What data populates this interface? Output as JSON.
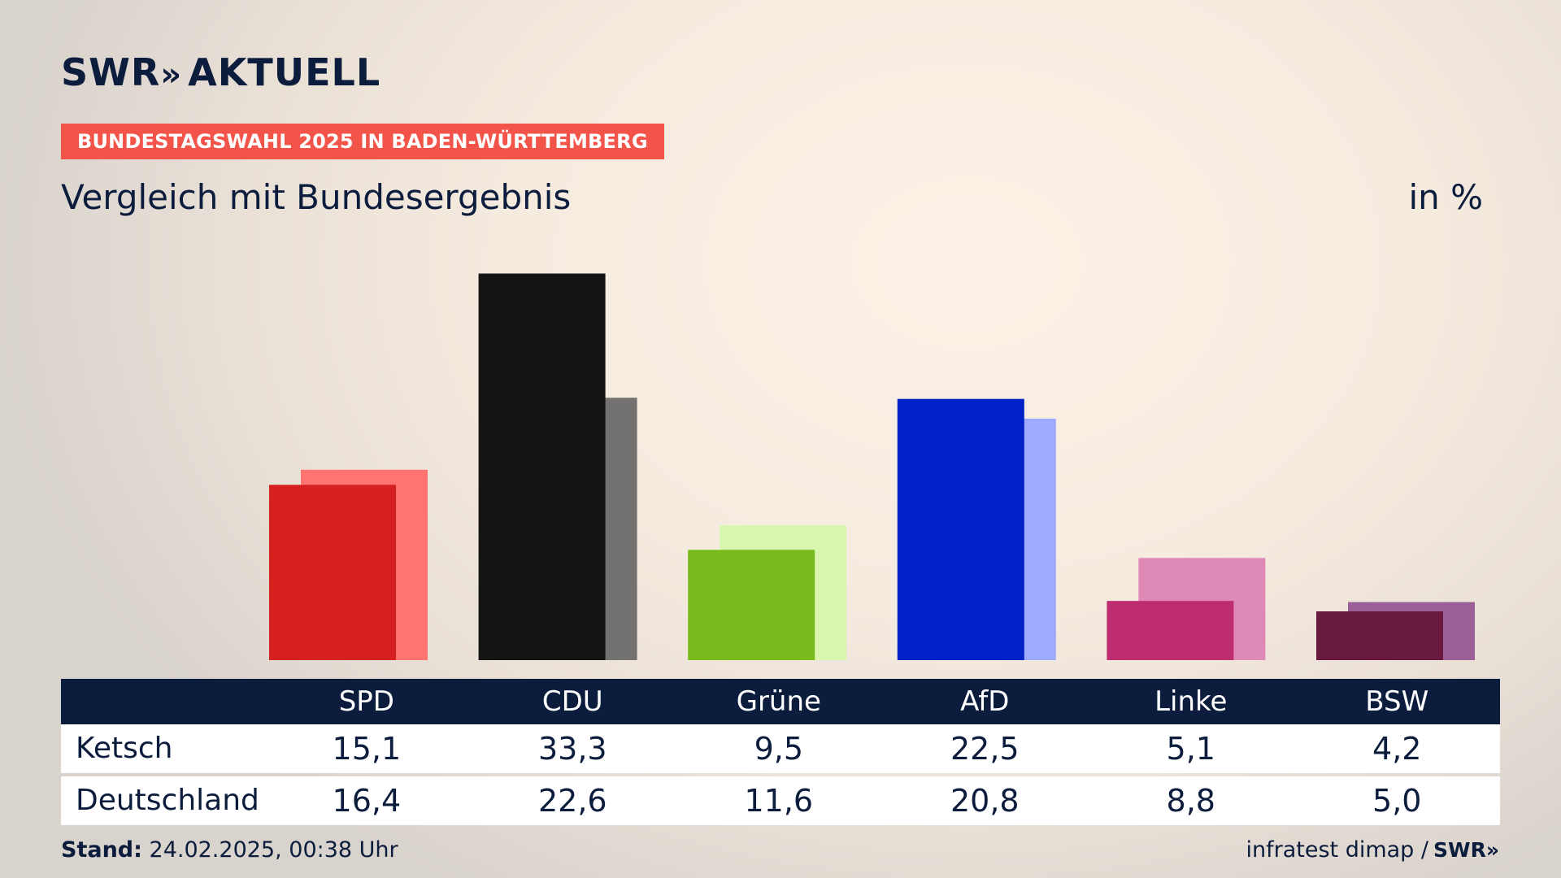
{
  "brand": {
    "logo_text": "SWR",
    "logo_arrows": "»",
    "logo_suffix": "AKTUELL"
  },
  "kicker": "BUNDESTAGSWAHL 2025 IN BADEN-WÜRTTEMBERG",
  "title": "Vergleich mit Bundesergebnis",
  "unit": "in %",
  "chart_data": {
    "type": "bar",
    "categories": [
      "SPD",
      "CDU",
      "Grüne",
      "AfD",
      "Linke",
      "BSW"
    ],
    "series": [
      {
        "name": "Ketsch",
        "values": [
          15.1,
          33.3,
          9.5,
          22.5,
          5.1,
          4.2
        ]
      },
      {
        "name": "Deutschland",
        "values": [
          16.4,
          22.6,
          11.6,
          20.8,
          8.8,
          5.0
        ]
      }
    ],
    "colors": {
      "Ketsch": [
        "#d6201f",
        "#141414",
        "#79bb1c",
        "#0021c8",
        "#bd2d6f",
        "#6b1a3f"
      ],
      "Deutschland": [
        "#ff7470",
        "#737270",
        "#d8f6ae",
        "#9eaaff",
        "#de89b6",
        "#9c6098"
      ]
    }
  },
  "table": {
    "headers": [
      "",
      "SPD",
      "CDU",
      "Grüne",
      "AfD",
      "Linke",
      "BSW"
    ],
    "rows": [
      {
        "label": "Ketsch",
        "values": [
          "15,1",
          "33,3",
          "9,5",
          "22,5",
          "5,1",
          "4,2"
        ]
      },
      {
        "label": "Deutschland",
        "values": [
          "16,4",
          "22,6",
          "11,6",
          "20,8",
          "8,8",
          "5,0"
        ]
      }
    ]
  },
  "footer": {
    "stand_label": "Stand:",
    "stand_value": "24.02.2025, 00:38 Uhr",
    "source": "infratest dimap /",
    "source_logo": "SWR»"
  }
}
